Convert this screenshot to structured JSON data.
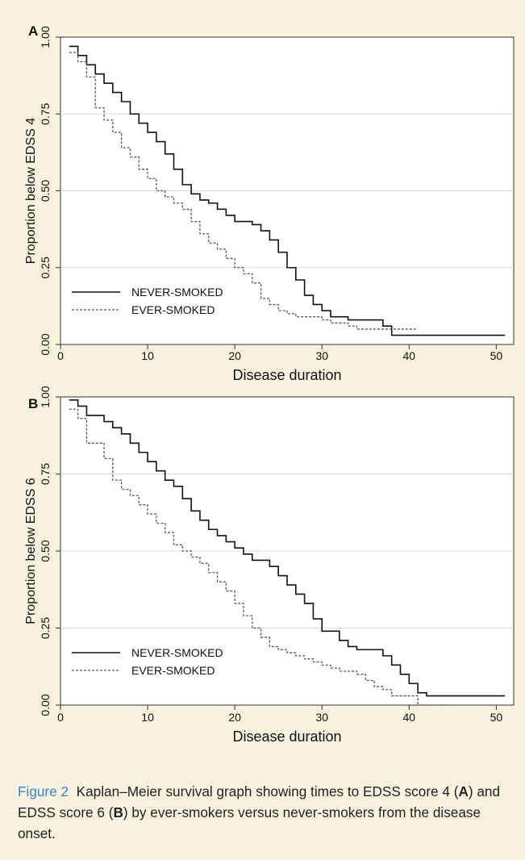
{
  "figure": {
    "caption_label": "Figure 2",
    "caption_text_1": "Kaplan–Meier survival graph showing times to EDSS score 4 (",
    "caption_bold_A": "A",
    "caption_text_2": ") and EDSS score 6 (",
    "caption_bold_B": "B",
    "caption_text_3": ") by ever-smokers versus never-smokers from the disease onset."
  },
  "colors": {
    "background": "#f6f2de",
    "plot_area": "#ffffff",
    "never_smoked": "#111111",
    "ever_smoked": "#555555",
    "gridline": "#d9d9d9"
  },
  "chart_data": [
    {
      "panel": "A",
      "type": "line",
      "step": true,
      "xlabel": "Disease duration",
      "ylabel": "Proportion below EDSS 4",
      "xlim": [
        0,
        52
      ],
      "ylim": [
        0,
        1
      ],
      "xticks": [
        "0",
        "10",
        "20",
        "30",
        "40",
        "50"
      ],
      "yticks": [
        "0.00",
        "0.25",
        "0.50",
        "0.75",
        "1.00"
      ],
      "grid": "horizontal",
      "legend_position": "bottom-left",
      "series": [
        {
          "name": "NEVER-SMOKED",
          "style": "solid",
          "x": [
            1,
            2,
            3,
            4,
            5,
            6,
            7,
            8,
            9,
            10,
            11,
            12,
            13,
            14,
            15,
            16,
            17,
            18,
            19,
            20,
            22,
            23,
            24,
            25,
            26,
            27,
            28,
            29,
            30,
            31,
            33,
            36,
            37,
            38,
            51
          ],
          "y": [
            0.97,
            0.94,
            0.91,
            0.88,
            0.85,
            0.82,
            0.79,
            0.75,
            0.72,
            0.69,
            0.66,
            0.62,
            0.57,
            0.52,
            0.49,
            0.47,
            0.46,
            0.44,
            0.42,
            0.4,
            0.39,
            0.37,
            0.34,
            0.3,
            0.25,
            0.21,
            0.16,
            0.13,
            0.11,
            0.09,
            0.08,
            0.08,
            0.06,
            0.03,
            0.03
          ]
        },
        {
          "name": "EVER-SMOKED",
          "style": "dashed",
          "x": [
            1,
            2,
            3,
            4,
            5,
            6,
            7,
            8,
            9,
            10,
            11,
            12,
            13,
            14,
            15,
            16,
            17,
            18,
            19,
            20,
            21,
            22,
            23,
            24,
            25,
            26,
            27,
            28,
            30,
            31,
            32,
            33,
            34,
            35,
            38,
            39,
            40,
            41
          ],
          "y": [
            0.95,
            0.92,
            0.87,
            0.77,
            0.73,
            0.69,
            0.64,
            0.61,
            0.57,
            0.54,
            0.5,
            0.48,
            0.46,
            0.44,
            0.4,
            0.36,
            0.33,
            0.31,
            0.28,
            0.25,
            0.23,
            0.2,
            0.15,
            0.13,
            0.11,
            0.1,
            0.09,
            0.09,
            0.08,
            0.07,
            0.07,
            0.06,
            0.05,
            0.05,
            0.05,
            0.05,
            0.05,
            0.05
          ]
        }
      ]
    },
    {
      "panel": "B",
      "type": "line",
      "step": true,
      "xlabel": "Disease duration",
      "ylabel": "Proportion below EDSS 6",
      "xlim": [
        0,
        52
      ],
      "ylim": [
        0,
        1
      ],
      "xticks": [
        "0",
        "10",
        "20",
        "30",
        "40",
        "50"
      ],
      "yticks": [
        "0.00",
        "0.25",
        "0.50",
        "0.75",
        "1.00"
      ],
      "grid": "horizontal",
      "legend_position": "bottom-left",
      "series": [
        {
          "name": "NEVER-SMOKED",
          "style": "solid",
          "x": [
            1,
            2,
            3,
            5,
            6,
            7,
            8,
            9,
            10,
            11,
            12,
            13,
            14,
            15,
            16,
            17,
            18,
            19,
            20,
            21,
            22,
            24,
            25,
            26,
            27,
            28,
            29,
            30,
            32,
            33,
            34,
            37,
            38,
            39,
            40,
            41,
            42,
            43,
            51
          ],
          "y": [
            0.99,
            0.97,
            0.94,
            0.92,
            0.9,
            0.88,
            0.85,
            0.82,
            0.79,
            0.76,
            0.73,
            0.71,
            0.67,
            0.63,
            0.6,
            0.57,
            0.55,
            0.53,
            0.51,
            0.49,
            0.47,
            0.45,
            0.42,
            0.39,
            0.36,
            0.33,
            0.28,
            0.24,
            0.21,
            0.19,
            0.18,
            0.16,
            0.13,
            0.1,
            0.07,
            0.04,
            0.03,
            0.03,
            0.03
          ]
        },
        {
          "name": "EVER-SMOKED",
          "style": "dashed",
          "x": [
            1,
            2,
            3,
            5,
            6,
            7,
            8,
            9,
            10,
            11,
            12,
            13,
            14,
            15,
            16,
            17,
            18,
            19,
            20,
            21,
            22,
            23,
            24,
            25,
            26,
            27,
            28,
            29,
            30,
            31,
            32,
            34,
            35,
            36,
            37,
            38,
            41,
            45
          ],
          "y": [
            0.96,
            0.93,
            0.85,
            0.8,
            0.73,
            0.7,
            0.68,
            0.65,
            0.62,
            0.59,
            0.56,
            0.52,
            0.5,
            0.48,
            0.46,
            0.43,
            0.4,
            0.37,
            0.33,
            0.29,
            0.25,
            0.22,
            0.19,
            0.18,
            0.17,
            0.16,
            0.15,
            0.14,
            0.13,
            0.12,
            0.11,
            0.1,
            0.08,
            0.06,
            0.05,
            0.03,
            0.0,
            0.0
          ]
        }
      ]
    }
  ]
}
